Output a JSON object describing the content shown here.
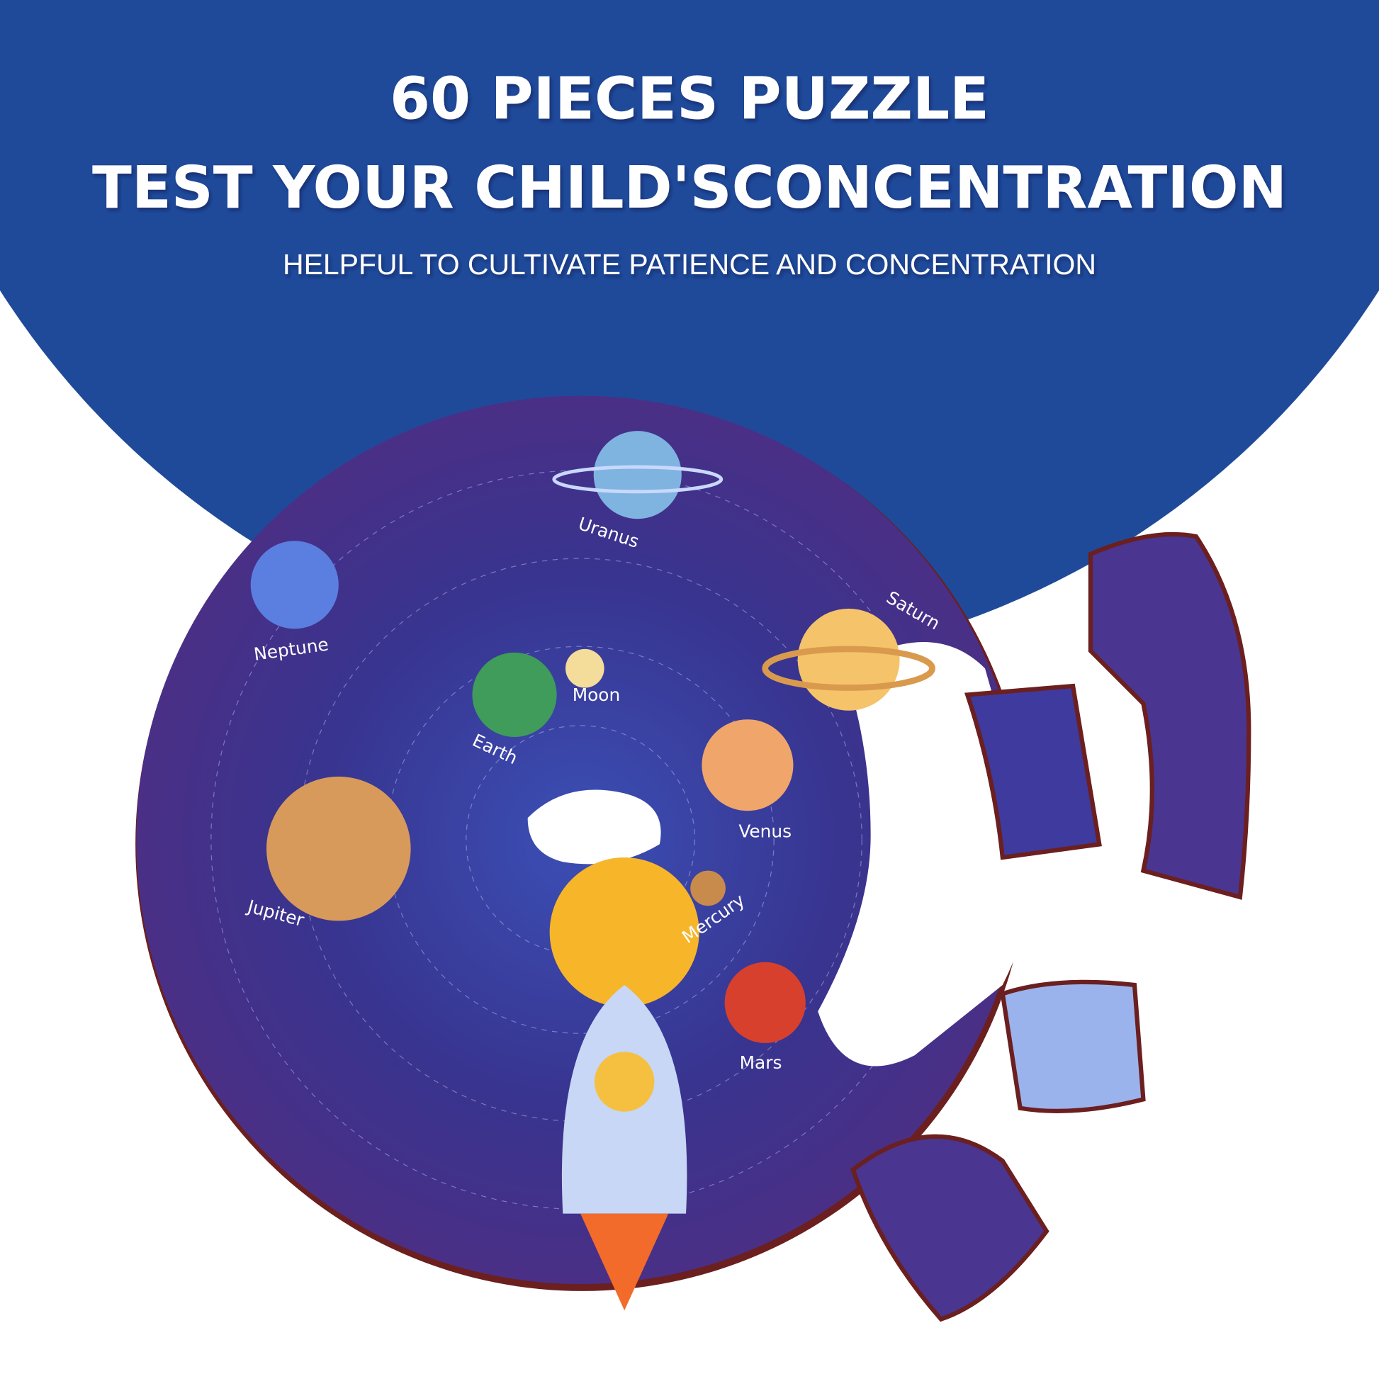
{
  "headline": [
    "60 PIECES PUZZLE",
    "TEST YOUR CHILD'SCONCENTRATION"
  ],
  "subtitle": "HELPFUL TO CULTIVATE PATIENCE AND CONCENTRATION",
  "planets": [
    {
      "label": "Uranus"
    },
    {
      "label": "Saturn"
    },
    {
      "label": "Neptune"
    },
    {
      "label": "Moon"
    },
    {
      "label": "Earth"
    },
    {
      "label": "Venus"
    },
    {
      "label": "Jupiter"
    },
    {
      "label": "Mercury"
    },
    {
      "label": "Mars"
    }
  ]
}
